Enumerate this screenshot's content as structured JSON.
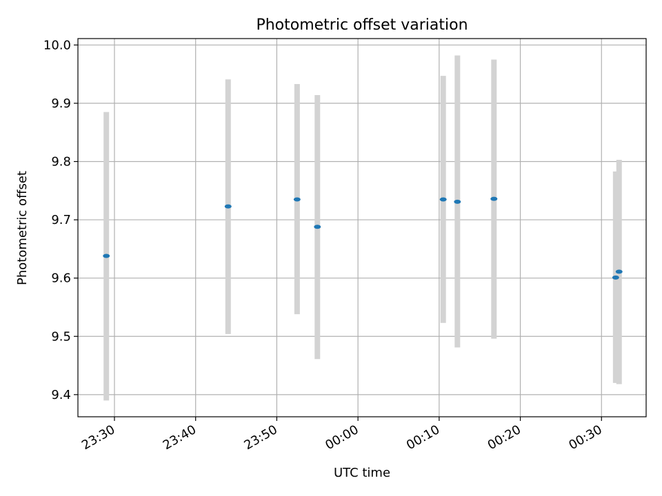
{
  "chart_data": {
    "type": "scatter",
    "title": "Photometric offset variation",
    "xlabel": "UTC time",
    "ylabel": "Photometric offset",
    "x_ticks": [
      "23:30",
      "23:40",
      "23:50",
      "00:00",
      "00:10",
      "00:20",
      "00:30"
    ],
    "y_ticks": [
      "9.4",
      "9.5",
      "9.6",
      "9.7",
      "9.8",
      "9.9",
      "10.0"
    ],
    "ylim": [
      9.362,
      10.011
    ],
    "xlim": [
      "23:25:30",
      "00:35:30"
    ],
    "grid": true,
    "series": [
      {
        "marker_color": "#1f77b4",
        "errorbar_color": "#d3d3d3",
        "points": [
          {
            "time": "23:29:00",
            "y": 9.638,
            "y_low": 9.39,
            "y_high": 9.885
          },
          {
            "time": "23:44:00",
            "y": 9.723,
            "y_low": 9.504,
            "y_high": 9.941
          },
          {
            "time": "23:52:30",
            "y": 9.735,
            "y_low": 9.538,
            "y_high": 9.933
          },
          {
            "time": "23:55:00",
            "y": 9.688,
            "y_low": 9.461,
            "y_high": 9.914
          },
          {
            "time": "00:10:30",
            "y": 9.735,
            "y_low": 9.523,
            "y_high": 9.947
          },
          {
            "time": "00:12:15",
            "y": 9.731,
            "y_low": 9.481,
            "y_high": 9.982
          },
          {
            "time": "00:16:45",
            "y": 9.736,
            "y_low": 9.496,
            "y_high": 9.975
          },
          {
            "time": "00:31:45",
            "y": 9.601,
            "y_low": 9.42,
            "y_high": 9.783
          },
          {
            "time": "00:32:10",
            "y": 9.611,
            "y_low": 9.418,
            "y_high": 9.803
          }
        ]
      }
    ]
  }
}
